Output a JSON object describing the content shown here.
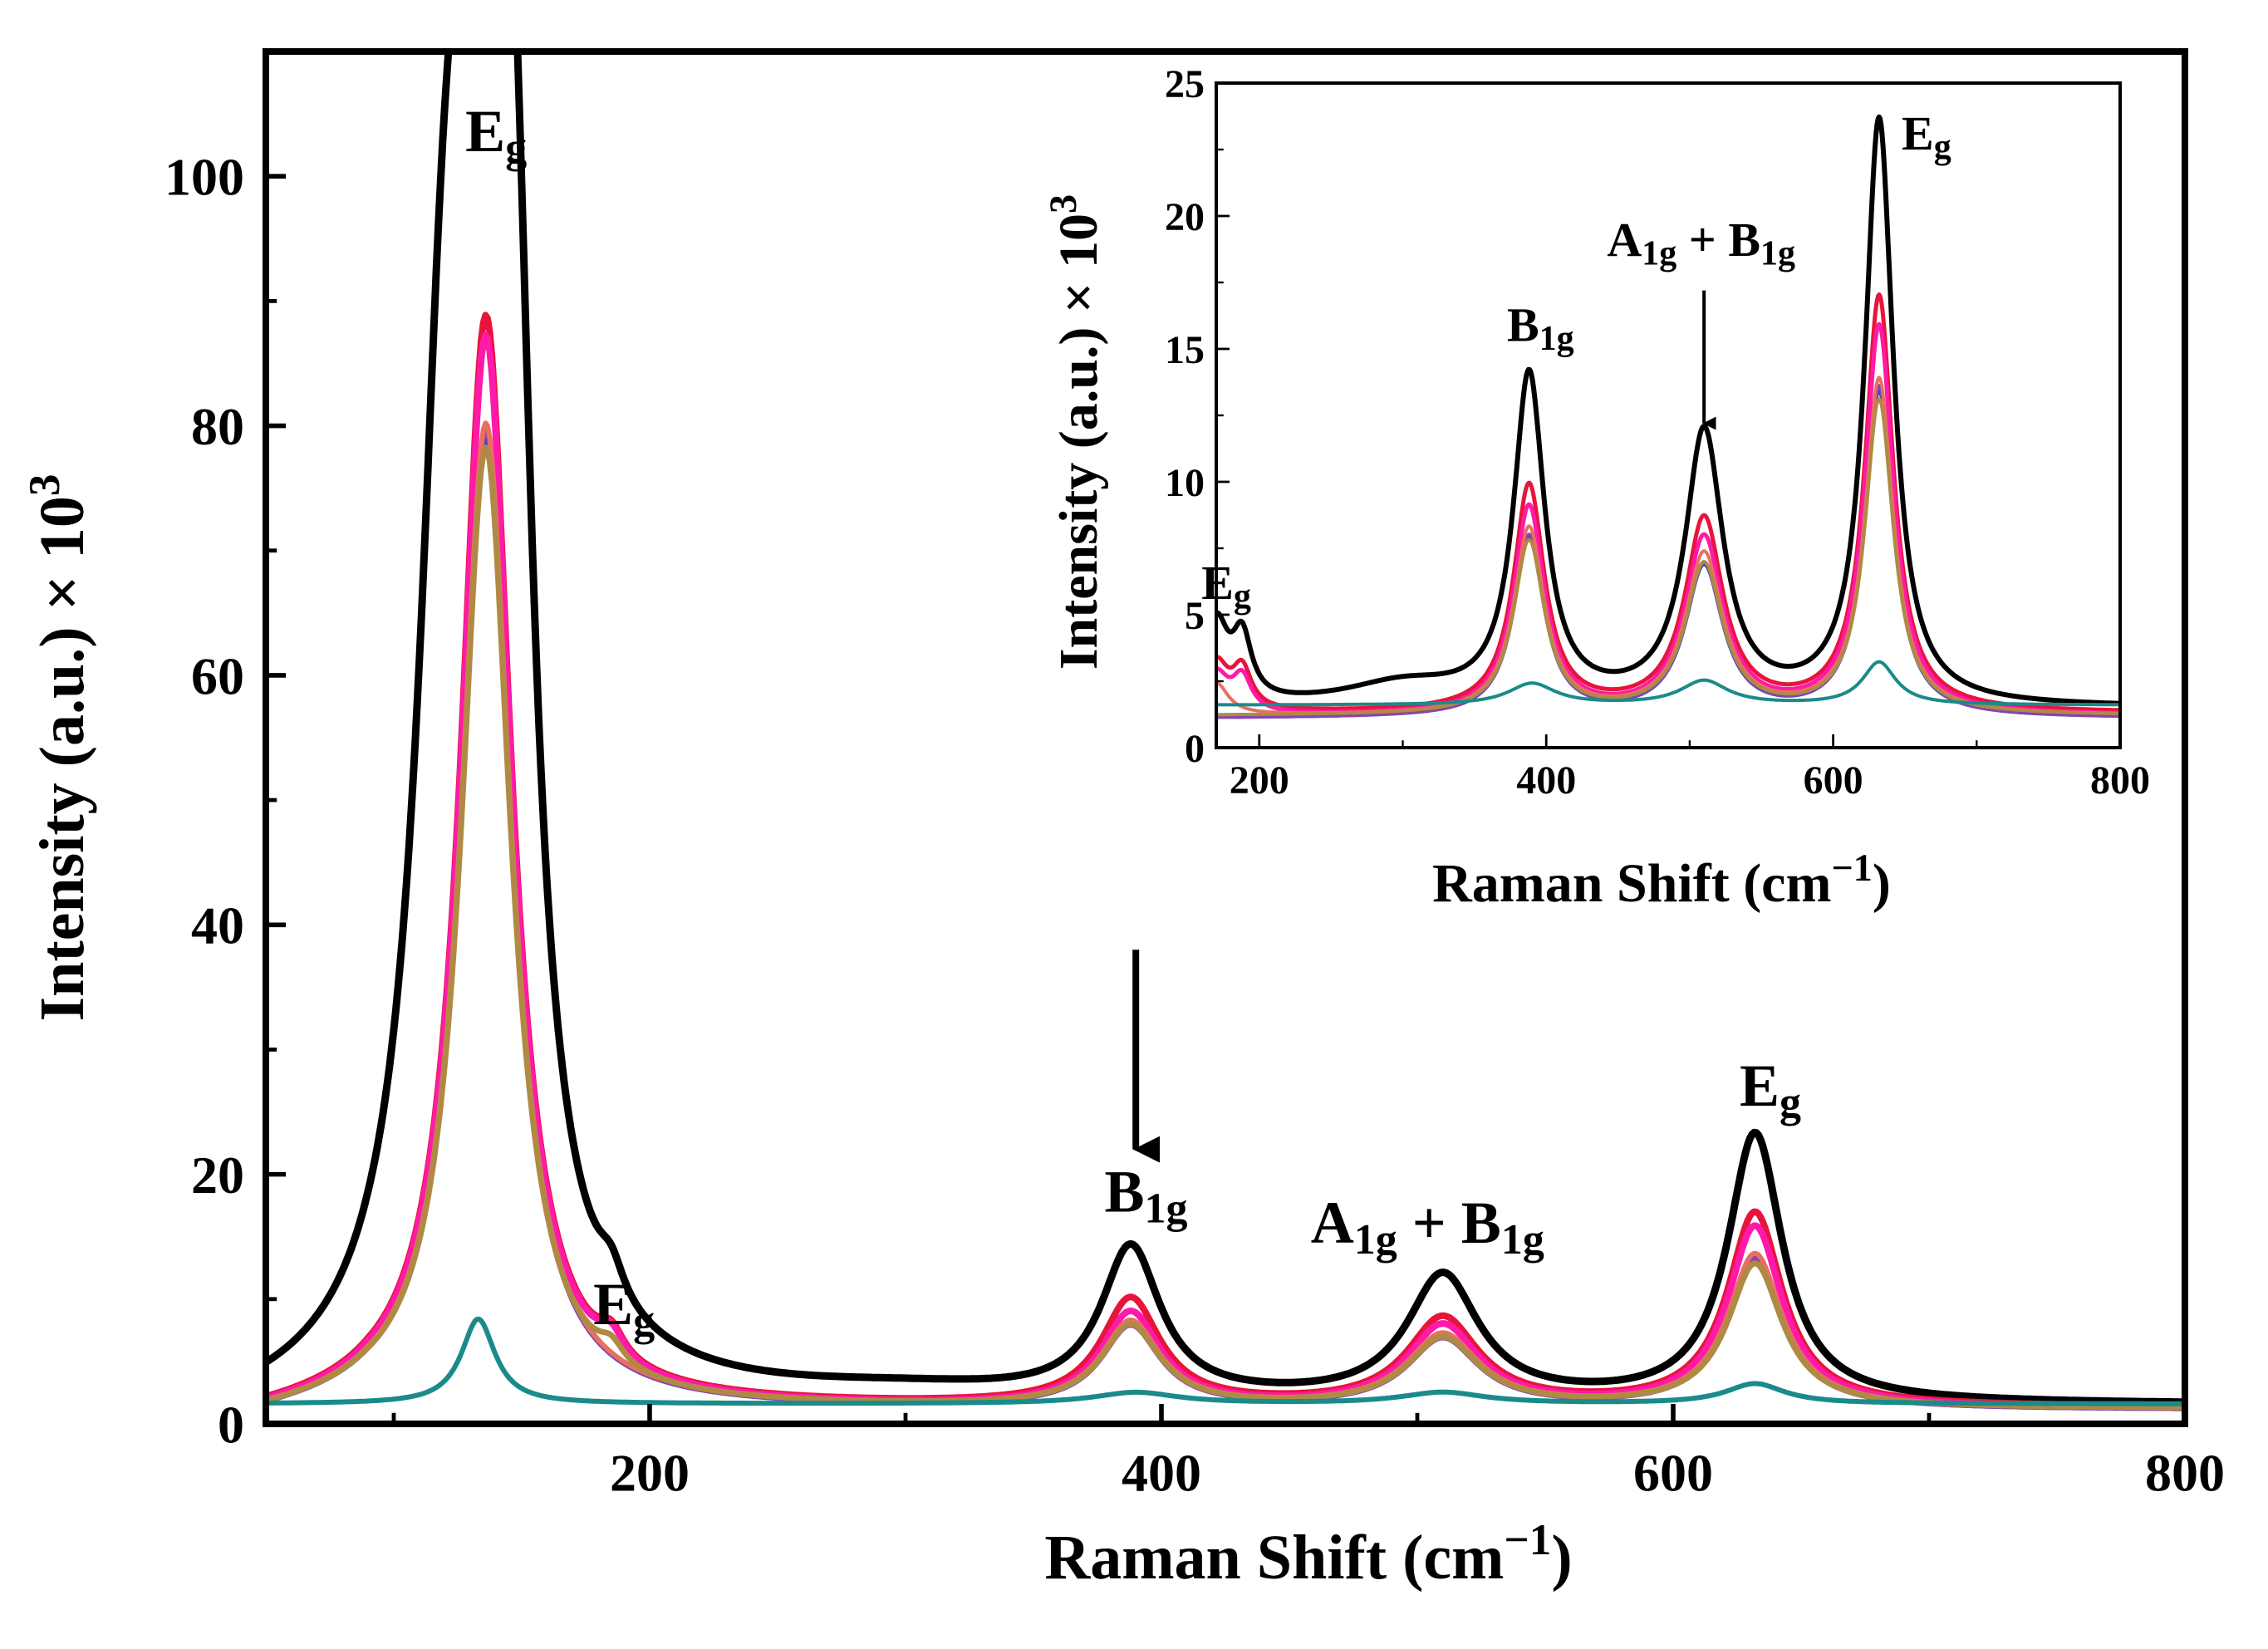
{
  "chart_data": [
    {
      "id": "main",
      "type": "line",
      "xlabel": "Raman Shift (cm",
      "xlabel_sup": "−1",
      "xlabel_close": ")",
      "ylabel": "Intensity (a.u.) × 10",
      "ylabel_sup": "3",
      "xlim": [
        50,
        800
      ],
      "ylim": [
        0,
        110
      ],
      "xticks": [
        200,
        400,
        600,
        800
      ],
      "yticks": [
        0,
        20,
        40,
        60,
        80,
        100
      ],
      "series": [
        {
          "name": "black",
          "color": "#000000",
          "width": 9,
          "baseline": 1.5,
          "tail": [
            [
              50,
              -0.9
            ],
            [
              90,
              3.5
            ]
          ],
          "peaks": [
            [
              120,
              65,
              13
            ],
            [
              135,
              95,
              11
            ],
            [
              147,
              60,
              9
            ],
            [
              185,
              2.5,
              6
            ],
            [
              300,
              0.8,
              60
            ],
            [
              388,
              12,
              14
            ],
            [
              510,
              10,
              17
            ],
            [
              632,
              21.5,
              13
            ]
          ]
        },
        {
          "name": "red",
          "color": "#e8143c",
          "width": 8,
          "baseline": 1.3,
          "tail": [
            [
              50,
              -0.8
            ],
            [
              90,
              3
            ]
          ],
          "peaks": [
            [
              136,
              87.5,
              12
            ],
            [
              185,
              2,
              6
            ],
            [
              388,
              8.5,
              14
            ],
            [
              510,
              7,
              17
            ],
            [
              632,
              15.5,
              13
            ]
          ]
        },
        {
          "name": "magenta",
          "color": "#ff1aaa",
          "width": 8,
          "baseline": 1.2,
          "tail": [
            [
              50,
              -0.8
            ],
            [
              90,
              3
            ]
          ],
          "peaks": [
            [
              136,
              86,
              12
            ],
            [
              185,
              2,
              6
            ],
            [
              388,
              7.5,
              14
            ],
            [
              510,
              6.5,
              17
            ],
            [
              632,
              14.5,
              13
            ]
          ]
        },
        {
          "name": "blue",
          "color": "#3344cc",
          "width": 6,
          "baseline": 1.1,
          "tail": [
            [
              50,
              -0.8
            ],
            [
              90,
              3
            ]
          ],
          "peaks": [
            [
              136,
              78,
              12
            ],
            [
              388,
              6.5,
              14
            ],
            [
              510,
              5.5,
              17
            ],
            [
              632,
              12,
              13
            ]
          ]
        },
        {
          "name": "purple",
          "color": "#8844aa",
          "width": 6,
          "baseline": 1.1,
          "tail": [
            [
              50,
              -0.8
            ],
            [
              90,
              3
            ]
          ],
          "peaks": [
            [
              136,
              78.5,
              12
            ],
            [
              388,
              6.5,
              14
            ],
            [
              510,
              5.5,
              17
            ],
            [
              632,
              12,
              13
            ]
          ]
        },
        {
          "name": "salmon",
          "color": "#e87060",
          "width": 6,
          "baseline": 1.2,
          "tail": [
            [
              50,
              -0.8
            ],
            [
              90,
              3
            ]
          ],
          "peaks": [
            [
              136,
              79,
              12
            ],
            [
              388,
              6.8,
              14
            ],
            [
              510,
              5.8,
              17
            ],
            [
              632,
              12.3,
              13
            ]
          ]
        },
        {
          "name": "olive",
          "color": "#b08a44",
          "width": 7,
          "baseline": 1.2,
          "tail": [
            [
              50,
              -0.8
            ],
            [
              90,
              3
            ]
          ],
          "peaks": [
            [
              136,
              77,
              12
            ],
            [
              185,
              1.5,
              6
            ],
            [
              388,
              6.5,
              14
            ],
            [
              510,
              5.5,
              17
            ],
            [
              632,
              11.5,
              13
            ]
          ]
        },
        {
          "name": "teal",
          "color": "#1a8a8a",
          "width": 6,
          "baseline": 1.6,
          "tail": [],
          "peaks": [
            [
              133,
              6.8,
              8
            ],
            [
              390,
              0.9,
              20
            ],
            [
              510,
              0.9,
              20
            ],
            [
              632,
              1.6,
              14
            ]
          ]
        }
      ],
      "annotations": [
        {
          "text": "E",
          "sub": "g",
          "x": 140,
          "y": 102
        },
        {
          "text": "E",
          "sub": "g",
          "x": 190,
          "y": 8
        },
        {
          "text": "B",
          "sub": "1g",
          "x": 394,
          "y": 17
        },
        {
          "text": "A",
          "sub": "1g",
          "text2": " + B",
          "sub2": "1g",
          "x": 504,
          "y": 14.5
        },
        {
          "text": "E",
          "sub": "g",
          "x": 638,
          "y": 25.5
        }
      ],
      "arrows": [
        {
          "x": 390,
          "y_from": 38,
          "y_to": 22
        }
      ]
    },
    {
      "id": "inset",
      "type": "line",
      "xlabel": "Raman Shift (cm",
      "xlabel_sup": "−1",
      "xlabel_close": ")",
      "ylabel": "Intensity (a.u.) × 10",
      "ylabel_sup": "3",
      "xlim": [
        170,
        800
      ],
      "ylim": [
        0,
        25
      ],
      "xticks": [
        200,
        400,
        600,
        800
      ],
      "yticks": [
        0,
        5,
        10,
        15,
        20,
        25
      ],
      "series": [
        {
          "name": "black",
          "color": "#000000",
          "width": 6,
          "baseline": 1.5,
          "tail": [],
          "peaks": [
            [
              170,
              3,
              10
            ],
            [
              188,
              2.3,
              8
            ],
            [
              300,
              0.8,
              50
            ],
            [
              388,
              12.3,
              13
            ],
            [
              510,
              10.2,
              16
            ],
            [
              632,
              22,
              12
            ]
          ]
        },
        {
          "name": "red",
          "color": "#e8143c",
          "width": 5,
          "baseline": 1.3,
          "tail": [],
          "peaks": [
            [
              170,
              1.8,
              10
            ],
            [
              188,
              1.5,
              8
            ],
            [
              388,
              8.5,
              13
            ],
            [
              510,
              7.2,
              16
            ],
            [
              632,
              15.6,
              12
            ]
          ]
        },
        {
          "name": "magenta",
          "color": "#ff1aaa",
          "width": 5,
          "baseline": 1.2,
          "tail": [],
          "peaks": [
            [
              170,
              1.5,
              10
            ],
            [
              188,
              1.3,
              8
            ],
            [
              388,
              7.8,
              13
            ],
            [
              510,
              6.6,
              16
            ],
            [
              632,
              14.6,
              12
            ]
          ]
        },
        {
          "name": "blue",
          "color": "#3344cc",
          "width": 4,
          "baseline": 1.1,
          "tail": [],
          "peaks": [
            [
              388,
              6.7,
              13
            ],
            [
              510,
              5.6,
              16
            ],
            [
              632,
              12.2,
              12
            ]
          ]
        },
        {
          "name": "purple",
          "color": "#8844aa",
          "width": 4,
          "baseline": 1.1,
          "tail": [],
          "peaks": [
            [
              388,
              6.8,
              13
            ],
            [
              510,
              5.7,
              16
            ],
            [
              632,
              12.4,
              12
            ]
          ]
        },
        {
          "name": "salmon",
          "color": "#e87060",
          "width": 4,
          "baseline": 1.2,
          "tail": [],
          "peaks": [
            [
              170,
              1.2,
              10
            ],
            [
              388,
              7,
              13
            ],
            [
              510,
              6,
              16
            ],
            [
              632,
              12.6,
              12
            ]
          ]
        },
        {
          "name": "olive",
          "color": "#b08a44",
          "width": 4,
          "baseline": 1.2,
          "tail": [],
          "peaks": [
            [
              388,
              6.5,
              13
            ],
            [
              510,
              5.6,
              16
            ],
            [
              632,
              11.8,
              12
            ]
          ]
        },
        {
          "name": "teal",
          "color": "#1a8a8a",
          "width": 4,
          "baseline": 1.6,
          "tail": [],
          "peaks": [
            [
              390,
              0.8,
              20
            ],
            [
              510,
              0.9,
              20
            ],
            [
              632,
              1.6,
              14
            ]
          ]
        }
      ],
      "annotations": [
        {
          "text": "E",
          "sub": "g",
          "x": 177,
          "y": 5.6
        },
        {
          "text": "B",
          "sub": "1g",
          "x": 396,
          "y": 15.3
        },
        {
          "text": "A",
          "sub": "1g",
          "text2": " + B",
          "sub2": "1g",
          "x": 508,
          "y": 18.5
        },
        {
          "text": "E",
          "sub": "g",
          "x": 665,
          "y": 22.5
        }
      ],
      "arrows": [
        {
          "x": 510,
          "y_from": 17.2,
          "y_to": 12.2
        }
      ]
    }
  ]
}
